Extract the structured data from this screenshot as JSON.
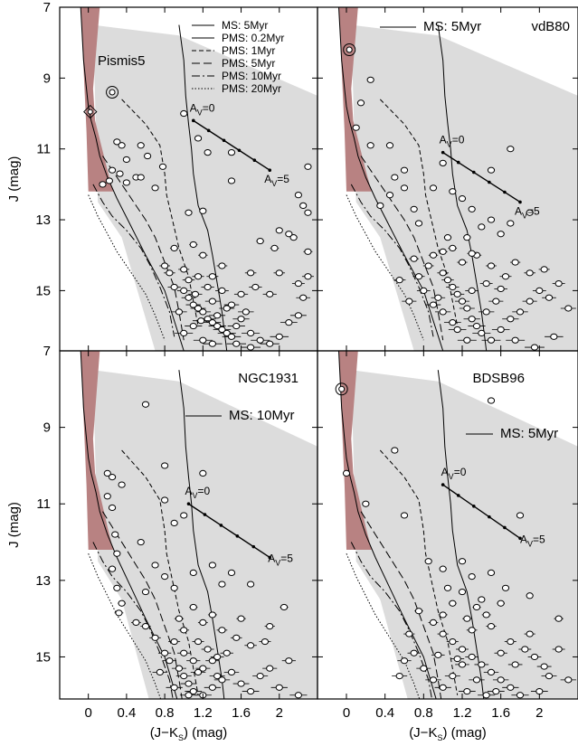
{
  "colors": {
    "gray_region": "#dcdcdc",
    "red_band": "#b88282",
    "frame": "#000000",
    "star_fill": "#ffffff"
  },
  "chart_data": [
    {
      "type": "scatter",
      "title": "Pismis5",
      "xlabel": "(J−K_S) (mag)",
      "ylabel": "J (mag)",
      "xlim": [
        -0.3,
        2.4
      ],
      "ylim": [
        16.7,
        7.0
      ],
      "x_ticks": [
        "0",
        "0.4",
        "0.8",
        "1.2",
        "1.6",
        "2"
      ],
      "y_ticks": [
        "7",
        "9",
        "11",
        "13",
        "15"
      ],
      "legend": [
        "MS: 5Myr",
        "PMS: 0.2Myr",
        "PMS: 1Myr",
        "PMS: 5Myr",
        "PMS: 10Myr",
        "PMS: 20Myr"
      ],
      "reddening_vector": {
        "start": [
          1.1,
          10.2
        ],
        "end": [
          1.9,
          11.6
        ],
        "label_start": "A_V=0",
        "label_end": "A_V=5"
      },
      "marked_stars": [
        [
          0.25,
          9.4
        ]
      ],
      "diamond_stars": [
        [
          0.02,
          9.95
        ]
      ],
      "stars": [
        [
          0.3,
          10.8
        ],
        [
          0.35,
          10.9
        ],
        [
          0.4,
          11.3
        ],
        [
          0.33,
          11.7
        ],
        [
          0.25,
          11.6
        ],
        [
          0.5,
          11.8
        ],
        [
          0.22,
          11.9
        ],
        [
          0.4,
          11.95
        ],
        [
          0.55,
          11.8
        ],
        [
          0.15,
          12.0
        ],
        [
          0.7,
          12.1
        ],
        [
          0.78,
          11.5
        ],
        [
          0.62,
          11.2
        ],
        [
          0.55,
          10.9
        ],
        [
          1.0,
          10.0
        ],
        [
          1.15,
          10.7
        ],
        [
          1.25,
          11.1
        ],
        [
          1.5,
          11.1
        ],
        [
          1.5,
          11.9
        ],
        [
          2.3,
          11.5
        ],
        [
          2.2,
          12.3
        ],
        [
          2.25,
          12.6
        ],
        [
          2.3,
          12.8
        ],
        [
          2.1,
          13.4
        ],
        [
          2.0,
          13.3
        ],
        [
          1.8,
          13.6
        ],
        [
          1.95,
          13.8
        ],
        [
          2.15,
          13.5
        ],
        [
          2.3,
          13.9
        ],
        [
          2.0,
          14.5
        ],
        [
          1.7,
          14.5
        ],
        [
          1.4,
          14.3
        ],
        [
          1.3,
          14.6
        ],
        [
          1.2,
          14.0
        ],
        [
          1.1,
          13.7
        ],
        [
          1.05,
          12.8
        ],
        [
          1.2,
          12.75
        ],
        [
          0.9,
          13.8
        ],
        [
          0.8,
          14.3
        ],
        [
          0.9,
          14.9
        ],
        [
          1.0,
          15.0
        ],
        [
          1.05,
          15.2
        ],
        [
          1.1,
          15.4
        ],
        [
          1.15,
          15.5
        ],
        [
          1.2,
          15.6
        ],
        [
          1.25,
          15.8
        ],
        [
          1.3,
          15.9
        ],
        [
          1.35,
          16.0
        ],
        [
          1.4,
          16.1
        ],
        [
          1.45,
          16.2
        ],
        [
          1.5,
          16.3
        ],
        [
          1.55,
          16.0
        ],
        [
          1.6,
          15.8
        ],
        [
          1.65,
          15.6
        ],
        [
          1.7,
          16.2
        ],
        [
          1.8,
          16.4
        ],
        [
          1.9,
          16.5
        ],
        [
          2.0,
          16.3
        ],
        [
          2.1,
          15.9
        ],
        [
          2.2,
          15.7
        ],
        [
          2.25,
          15.2
        ],
        [
          1.0,
          16.2
        ],
        [
          1.1,
          16.0
        ],
        [
          0.95,
          15.6
        ],
        [
          1.3,
          15.3
        ],
        [
          1.4,
          15.0
        ],
        [
          1.5,
          15.4
        ],
        [
          1.6,
          15.1
        ],
        [
          1.75,
          14.9
        ],
        [
          1.9,
          15.1
        ],
        [
          1.05,
          14.7
        ],
        [
          1.15,
          14.6
        ],
        [
          1.25,
          14.9
        ],
        [
          1.35,
          15.7
        ],
        [
          1.45,
          15.5
        ],
        [
          1.2,
          16.4
        ],
        [
          1.3,
          16.5
        ],
        [
          1.55,
          16.5
        ],
        [
          1.7,
          16.6
        ],
        [
          2.2,
          14.8
        ],
        [
          2.3,
          14.6
        ],
        [
          0.85,
          14.5
        ],
        [
          1.0,
          14.4
        ],
        [
          1.12,
          15.1
        ],
        [
          1.18,
          15.85
        ]
      ]
    },
    {
      "type": "scatter",
      "title": "vdB80",
      "xlabel": "(J−K_S) (mag)",
      "ylabel": "J (mag)",
      "xlim": [
        -0.3,
        2.4
      ],
      "ylim": [
        16.7,
        7.0
      ],
      "x_ticks": [
        "0",
        "0.4",
        "0.8",
        "1.2",
        "1.6",
        "2"
      ],
      "y_ticks": [
        "7",
        "9",
        "11",
        "13",
        "15"
      ],
      "legend": [
        "MS: 5Myr"
      ],
      "reddening_vector": {
        "start": [
          1.0,
          11.1
        ],
        "end": [
          1.8,
          12.5
        ],
        "label_start": "A_V=0",
        "label_end": "A_V=5"
      },
      "marked_stars": [
        [
          0.03,
          8.2
        ]
      ],
      "diamond_stars": [],
      "stars": [
        [
          0.25,
          9.05
        ],
        [
          0.15,
          9.7
        ],
        [
          0.1,
          10.4
        ],
        [
          0.25,
          10.9
        ],
        [
          0.45,
          10.9
        ],
        [
          0.5,
          11.8
        ],
        [
          0.6,
          11.6
        ],
        [
          0.45,
          12.3
        ],
        [
          0.6,
          12.1
        ],
        [
          0.35,
          12.6
        ],
        [
          0.7,
          12.7
        ],
        [
          0.75,
          13.1
        ],
        [
          0.9,
          12.1
        ],
        [
          1.0,
          11.4
        ],
        [
          1.1,
          12.2
        ],
        [
          1.2,
          12.4
        ],
        [
          1.3,
          12.7
        ],
        [
          1.5,
          11.6
        ],
        [
          1.7,
          11.0
        ],
        [
          1.9,
          12.8
        ],
        [
          1.7,
          13.1
        ],
        [
          1.5,
          13.0
        ],
        [
          1.6,
          13.4
        ],
        [
          1.4,
          13.2
        ],
        [
          1.25,
          13.5
        ],
        [
          1.1,
          13.8
        ],
        [
          1.0,
          13.9
        ],
        [
          0.9,
          14.0
        ],
        [
          0.85,
          14.3
        ],
        [
          1.0,
          14.5
        ],
        [
          1.05,
          14.7
        ],
        [
          1.1,
          14.9
        ],
        [
          1.15,
          15.1
        ],
        [
          1.2,
          15.3
        ],
        [
          1.25,
          15.5
        ],
        [
          1.3,
          15.8
        ],
        [
          1.35,
          16.0
        ],
        [
          1.4,
          16.2
        ],
        [
          1.5,
          16.4
        ],
        [
          1.6,
          16.1
        ],
        [
          1.7,
          15.8
        ],
        [
          1.8,
          15.6
        ],
        [
          1.9,
          15.3
        ],
        [
          2.0,
          15.0
        ],
        [
          2.1,
          15.2
        ],
        [
          2.2,
          14.8
        ],
        [
          2.3,
          15.5
        ],
        [
          1.2,
          14.2
        ],
        [
          1.35,
          14.0
        ],
        [
          1.5,
          14.3
        ],
        [
          1.65,
          14.6
        ],
        [
          1.45,
          14.8
        ],
        [
          1.3,
          15.0
        ],
        [
          1.55,
          15.3
        ],
        [
          1.75,
          16.4
        ],
        [
          1.95,
          16.6
        ],
        [
          2.15,
          16.3
        ],
        [
          0.8,
          15.0
        ],
        [
          0.9,
          15.4
        ],
        [
          1.0,
          15.6
        ],
        [
          1.1,
          15.9
        ],
        [
          0.75,
          14.6
        ],
        [
          1.05,
          13.5
        ],
        [
          1.3,
          13.95
        ],
        [
          1.6,
          14.95
        ],
        [
          1.75,
          14.2
        ],
        [
          1.9,
          14.5
        ],
        [
          2.05,
          14.4
        ],
        [
          0.95,
          15.2
        ],
        [
          1.15,
          16.1
        ],
        [
          1.25,
          16.4
        ],
        [
          1.45,
          15.6
        ],
        [
          0.65,
          15.3
        ],
        [
          0.55,
          14.7
        ],
        [
          0.7,
          14.1
        ]
      ]
    },
    {
      "type": "scatter",
      "title": "NGC1931",
      "xlabel": "(J−K_S) (mag)",
      "ylabel": "J (mag)",
      "xlim": [
        -0.3,
        2.4
      ],
      "ylim": [
        16.1,
        7.0
      ],
      "x_ticks": [
        "0",
        "0.4",
        "0.8",
        "1.2",
        "1.6",
        "2"
      ],
      "y_ticks": [
        "7",
        "9",
        "11",
        "13",
        "15"
      ],
      "legend": [
        "MS: 10Myr"
      ],
      "reddening_vector": {
        "start": [
          1.05,
          11.0
        ],
        "end": [
          1.9,
          12.4
        ],
        "label_start": "A_V=0",
        "label_end": "A_V=5"
      },
      "marked_stars": [],
      "diamond_stars": [],
      "stars": [
        [
          0.6,
          8.4
        ],
        [
          0.2,
          10.2
        ],
        [
          0.25,
          10.3
        ],
        [
          0.35,
          10.5
        ],
        [
          0.2,
          10.8
        ],
        [
          0.25,
          11.1
        ],
        [
          0.28,
          11.8
        ],
        [
          0.3,
          12.3
        ],
        [
          0.25,
          12.7
        ],
        [
          0.3,
          13.2
        ],
        [
          0.35,
          13.6
        ],
        [
          0.32,
          13.85
        ],
        [
          0.8,
          10.0
        ],
        [
          0.8,
          10.9
        ],
        [
          0.9,
          11.5
        ],
        [
          1.0,
          11.3
        ],
        [
          1.2,
          10.2
        ],
        [
          0.55,
          12.0
        ],
        [
          0.7,
          12.6
        ],
        [
          0.8,
          12.9
        ],
        [
          0.6,
          13.3
        ],
        [
          0.9,
          13.2
        ],
        [
          1.1,
          12.8
        ],
        [
          1.3,
          12.6
        ],
        [
          1.5,
          12.8
        ],
        [
          1.4,
          13.1
        ],
        [
          1.7,
          13.1
        ],
        [
          2.05,
          13.7
        ],
        [
          1.9,
          14.2
        ],
        [
          1.6,
          14.0
        ],
        [
          1.4,
          14.3
        ],
        [
          1.2,
          14.1
        ],
        [
          1.0,
          14.3
        ],
        [
          0.9,
          14.6
        ],
        [
          0.8,
          14.9
        ],
        [
          0.85,
          15.1
        ],
        [
          0.95,
          15.3
        ],
        [
          1.0,
          15.5
        ],
        [
          1.05,
          15.7
        ],
        [
          1.1,
          15.9
        ],
        [
          1.2,
          16.0
        ],
        [
          1.3,
          15.8
        ],
        [
          1.4,
          15.6
        ],
        [
          1.5,
          15.4
        ],
        [
          1.6,
          15.7
        ],
        [
          1.7,
          15.9
        ],
        [
          1.8,
          15.5
        ],
        [
          1.9,
          15.3
        ],
        [
          2.0,
          15.8
        ],
        [
          2.2,
          16.0
        ],
        [
          1.0,
          14.9
        ],
        [
          1.1,
          15.1
        ],
        [
          1.2,
          15.3
        ],
        [
          1.3,
          15.1
        ],
        [
          1.15,
          14.6
        ],
        [
          1.25,
          14.8
        ],
        [
          1.35,
          15.0
        ],
        [
          1.45,
          14.9
        ],
        [
          1.55,
          14.5
        ],
        [
          1.7,
          14.7
        ],
        [
          1.85,
          14.6
        ],
        [
          0.7,
          14.5
        ],
        [
          0.6,
          14.2
        ],
        [
          0.5,
          14.1
        ],
        [
          0.75,
          15.4
        ],
        [
          0.9,
          15.8
        ],
        [
          1.05,
          16.0
        ],
        [
          1.15,
          15.4
        ],
        [
          1.35,
          15.5
        ],
        [
          2.1,
          15.1
        ],
        [
          0.95,
          14.0
        ],
        [
          1.1,
          13.7
        ],
        [
          1.3,
          13.9
        ]
      ]
    },
    {
      "type": "scatter",
      "title": "BDSB96",
      "xlabel": "(J−K_S) (mag)",
      "ylabel": "J (mag)",
      "xlim": [
        -0.3,
        2.4
      ],
      "ylim": [
        16.1,
        7.0
      ],
      "x_ticks": [
        "0",
        "0.4",
        "0.8",
        "1.2",
        "1.6",
        "2"
      ],
      "y_ticks": [
        "7",
        "9",
        "11",
        "13",
        "15"
      ],
      "legend": [
        "MS: 5Myr"
      ],
      "reddening_vector": {
        "start": [
          1.0,
          10.5
        ],
        "end": [
          1.8,
          11.9
        ],
        "label_start": "A_V=0",
        "label_end": "A_V=5"
      },
      "marked_stars": [
        [
          -0.05,
          8.0
        ]
      ],
      "diamond_stars": [],
      "stars": [
        [
          1.5,
          8.3
        ],
        [
          0.5,
          9.6
        ],
        [
          0.0,
          10.2
        ],
        [
          0.2,
          11.0
        ],
        [
          0.6,
          11.3
        ],
        [
          1.8,
          11.3
        ],
        [
          0.85,
          12.5
        ],
        [
          1.0,
          12.7
        ],
        [
          1.2,
          12.5
        ],
        [
          1.3,
          12.9
        ],
        [
          1.5,
          12.8
        ],
        [
          1.65,
          13.2
        ],
        [
          1.9,
          13.4
        ],
        [
          2.2,
          14.0
        ],
        [
          1.6,
          13.6
        ],
        [
          1.4,
          13.5
        ],
        [
          1.2,
          13.3
        ],
        [
          1.1,
          13.6
        ],
        [
          1.0,
          13.9
        ],
        [
          0.9,
          14.1
        ],
        [
          1.0,
          14.4
        ],
        [
          1.1,
          14.6
        ],
        [
          1.2,
          14.8
        ],
        [
          1.3,
          15.0
        ],
        [
          1.4,
          15.2
        ],
        [
          1.5,
          15.4
        ],
        [
          1.6,
          15.6
        ],
        [
          1.7,
          15.8
        ],
        [
          1.8,
          16.0
        ],
        [
          2.0,
          15.9
        ],
        [
          2.2,
          14.8
        ],
        [
          1.9,
          14.4
        ],
        [
          1.7,
          14.6
        ],
        [
          1.5,
          14.2
        ],
        [
          1.3,
          14.3
        ],
        [
          1.25,
          14.0
        ],
        [
          1.45,
          13.9
        ],
        [
          0.7,
          14.9
        ],
        [
          0.6,
          15.1
        ],
        [
          0.8,
          15.3
        ],
        [
          0.9,
          15.6
        ],
        [
          1.0,
          15.8
        ],
        [
          1.1,
          15.5
        ],
        [
          1.2,
          15.2
        ],
        [
          1.35,
          15.6
        ],
        [
          1.55,
          15.9
        ],
        [
          1.75,
          15.2
        ],
        [
          1.95,
          15.0
        ],
        [
          2.1,
          15.5
        ],
        [
          2.3,
          15.6
        ],
        [
          0.95,
          14.95
        ],
        [
          1.15,
          15.05
        ],
        [
          1.05,
          13.2
        ],
        [
          1.35,
          13.7
        ],
        [
          1.6,
          14.9
        ],
        [
          1.85,
          14.8
        ],
        [
          2.05,
          15.25
        ],
        [
          1.25,
          15.9
        ],
        [
          1.45,
          16.0
        ],
        [
          0.55,
          15.5
        ],
        [
          0.65,
          14.4
        ],
        [
          0.75,
          13.8
        ]
      ]
    }
  ]
}
